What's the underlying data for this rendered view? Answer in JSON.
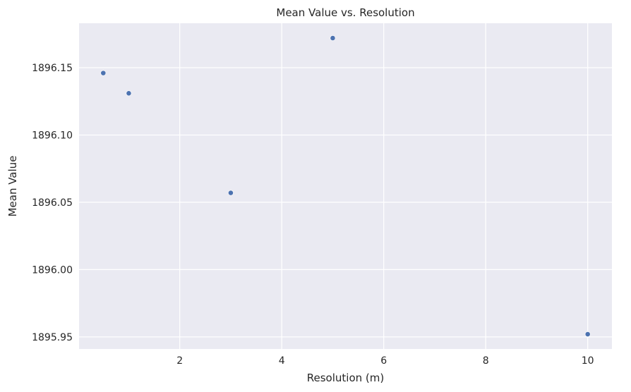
{
  "chart_data": {
    "type": "scatter",
    "title": "Mean Value vs. Resolution",
    "xlabel": "Resolution (m)",
    "ylabel": "Mean Value",
    "x": [
      0.5,
      1,
      3,
      5,
      10
    ],
    "y": [
      1896.146,
      1896.131,
      1896.057,
      1896.172,
      1895.952
    ],
    "xlim": [
      0.025,
      10.475
    ],
    "ylim": [
      1895.941,
      1896.183
    ],
    "xticks": [
      2,
      4,
      6,
      8,
      10
    ],
    "xtick_labels": [
      "2",
      "4",
      "6",
      "8",
      "10"
    ],
    "yticks": [
      1895.95,
      1896.0,
      1896.05,
      1896.1,
      1896.15
    ],
    "ytick_labels": [
      "1895.95",
      "1896.00",
      "1896.05",
      "1896.10",
      "1896.15"
    ],
    "grid": true,
    "background_color": "#eaeaf2",
    "marker_color": "#4c72b0"
  }
}
